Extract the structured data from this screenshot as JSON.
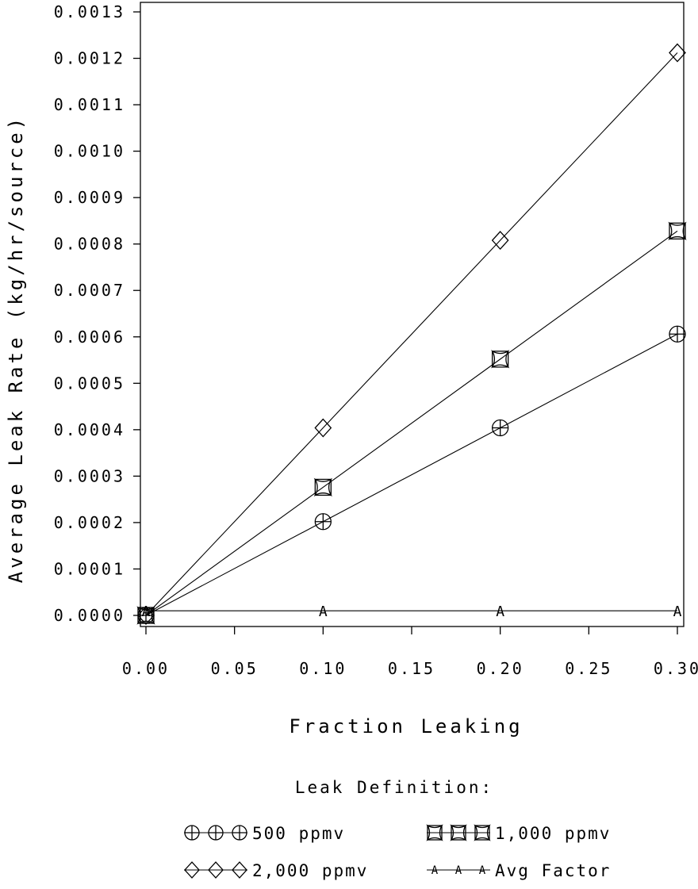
{
  "chart_data": {
    "type": "line",
    "title": "",
    "xlabel": "Fraction Leaking",
    "ylabel": "Average Leak Rate (kg/hr/source)",
    "xlim": [
      0,
      0.3
    ],
    "ylim": [
      0,
      0.0013
    ],
    "x_ticks": [
      "0.00",
      "0.05",
      "0.10",
      "0.15",
      "0.20",
      "0.25",
      "0.30"
    ],
    "y_ticks": [
      "0.0000",
      "0.0001",
      "0.0002",
      "0.0003",
      "0.0004",
      "0.0005",
      "0.0006",
      "0.0007",
      "0.0008",
      "0.0009",
      "0.0010",
      "0.0011",
      "0.0012",
      "0.0013"
    ],
    "grid": false,
    "legend_title": "Leak Definition:",
    "legend_position": "bottom",
    "series": [
      {
        "name": "500 ppmv",
        "marker": "circle-plus",
        "x": [
          0,
          0.1,
          0.2,
          0.3
        ],
        "y": [
          0,
          0.000202,
          0.000404,
          0.000606
        ]
      },
      {
        "name": "1,000 ppmv",
        "marker": "square-x",
        "x": [
          0,
          0.1,
          0.2,
          0.3
        ],
        "y": [
          0,
          0.000276,
          0.000552,
          0.000828
        ]
      },
      {
        "name": "2,000 ppmv",
        "marker": "diamond",
        "x": [
          0,
          0.1,
          0.2,
          0.3
        ],
        "y": [
          0,
          0.000404,
          0.000808,
          0.001212
        ]
      },
      {
        "name": "Avg Factor",
        "marker": "letter-A",
        "marker_text": "A",
        "x": [
          0,
          0.1,
          0.2,
          0.3
        ],
        "y": [
          1e-05,
          1e-05,
          1e-05,
          1e-05
        ]
      }
    ]
  }
}
